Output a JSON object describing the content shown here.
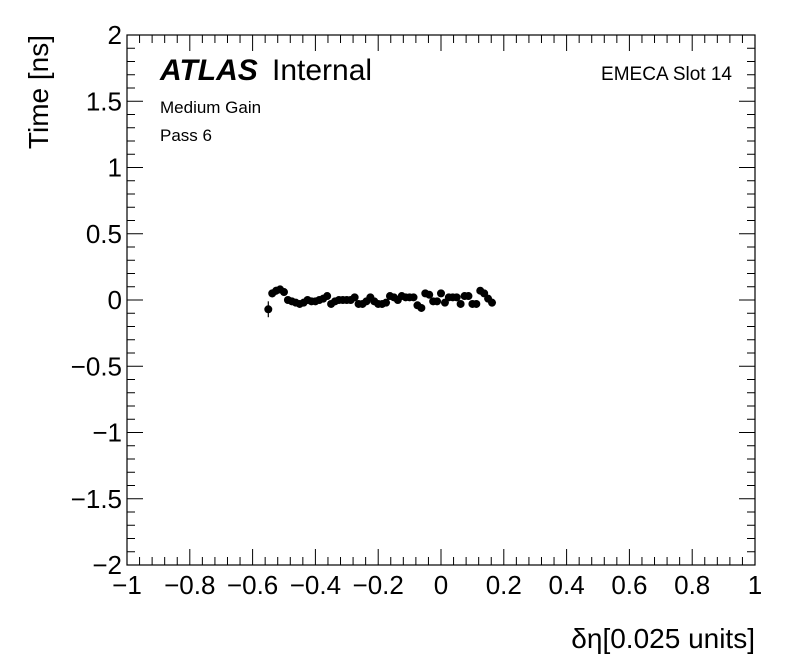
{
  "chart_data": {
    "type": "scatter",
    "xlabel": "δη[0.025 units]",
    "ylabel": "Time [ns]",
    "xlim": [
      -1,
      1
    ],
    "ylim": [
      -2,
      2
    ],
    "x_ticks": [
      "−1",
      "−0.8",
      "−0.6",
      "−0.4",
      "−0.2",
      "0",
      "0.2",
      "0.4",
      "0.6",
      "0.8",
      "1"
    ],
    "x_tick_values": [
      -1,
      -0.8,
      -0.6,
      -0.4,
      -0.2,
      0,
      0.2,
      0.4,
      0.6,
      0.8,
      1
    ],
    "y_ticks": [
      "−2",
      "−1.5",
      "−1",
      "−0.5",
      "0",
      "0.5",
      "1",
      "1.5",
      "2"
    ],
    "y_tick_values": [
      -2,
      -1.5,
      -1,
      -0.5,
      0,
      0.5,
      1,
      1.5,
      2
    ],
    "annotations": {
      "atlas": "ATLAS",
      "internal": "Internal",
      "gain": "Medium Gain",
      "pass": "Pass 6",
      "slot": "EMECA Slot 14"
    },
    "grid": false,
    "series": [
      {
        "marker": "circle",
        "color": "#000000",
        "points": [
          {
            "x": -0.55,
            "y": -0.07,
            "err": 0.06
          },
          {
            "x": -0.5375,
            "y": 0.05,
            "err": 0.03
          },
          {
            "x": -0.525,
            "y": 0.07,
            "err": 0.03
          },
          {
            "x": -0.5125,
            "y": 0.08,
            "err": 0.03
          },
          {
            "x": -0.5,
            "y": 0.06,
            "err": 0.03
          },
          {
            "x": -0.4875,
            "y": 0.0,
            "err": 0.02
          },
          {
            "x": -0.475,
            "y": -0.01,
            "err": 0.02
          },
          {
            "x": -0.4625,
            "y": -0.02,
            "err": 0.02
          },
          {
            "x": -0.45,
            "y": -0.03,
            "err": 0.02
          },
          {
            "x": -0.4375,
            "y": -0.02,
            "err": 0.02
          },
          {
            "x": -0.425,
            "y": 0.0,
            "err": 0.02
          },
          {
            "x": -0.4125,
            "y": -0.01,
            "err": 0.02
          },
          {
            "x": -0.4,
            "y": -0.01,
            "err": 0.02
          },
          {
            "x": -0.3875,
            "y": 0.0,
            "err": 0.02
          },
          {
            "x": -0.375,
            "y": 0.01,
            "err": 0.02
          },
          {
            "x": -0.3625,
            "y": 0.03,
            "err": 0.02
          },
          {
            "x": -0.35,
            "y": -0.03,
            "err": 0.02
          },
          {
            "x": -0.3375,
            "y": -0.01,
            "err": 0.02
          },
          {
            "x": -0.325,
            "y": 0.0,
            "err": 0.02
          },
          {
            "x": -0.3125,
            "y": 0.0,
            "err": 0.02
          },
          {
            "x": -0.3,
            "y": 0.0,
            "err": 0.02
          },
          {
            "x": -0.2875,
            "y": 0.0,
            "err": 0.02
          },
          {
            "x": -0.275,
            "y": 0.02,
            "err": 0.02
          },
          {
            "x": -0.2625,
            "y": -0.03,
            "err": 0.02
          },
          {
            "x": -0.25,
            "y": -0.03,
            "err": 0.02
          },
          {
            "x": -0.2375,
            "y": -0.01,
            "err": 0.02
          },
          {
            "x": -0.225,
            "y": 0.02,
            "err": 0.02
          },
          {
            "x": -0.2125,
            "y": -0.01,
            "err": 0.02
          },
          {
            "x": -0.2,
            "y": -0.03,
            "err": 0.02
          },
          {
            "x": -0.1875,
            "y": -0.03,
            "err": 0.02
          },
          {
            "x": -0.175,
            "y": -0.02,
            "err": 0.02
          },
          {
            "x": -0.1625,
            "y": 0.03,
            "err": 0.02
          },
          {
            "x": -0.15,
            "y": 0.02,
            "err": 0.02
          },
          {
            "x": -0.1375,
            "y": 0.0,
            "err": 0.02
          },
          {
            "x": -0.125,
            "y": 0.03,
            "err": 0.02
          },
          {
            "x": -0.1125,
            "y": 0.02,
            "err": 0.02
          },
          {
            "x": -0.1,
            "y": 0.02,
            "err": 0.02
          },
          {
            "x": -0.0875,
            "y": 0.02,
            "err": 0.02
          },
          {
            "x": -0.075,
            "y": -0.04,
            "err": 0.02
          },
          {
            "x": -0.0625,
            "y": -0.06,
            "err": 0.02
          },
          {
            "x": -0.05,
            "y": 0.05,
            "err": 0.02
          },
          {
            "x": -0.0375,
            "y": 0.04,
            "err": 0.02
          },
          {
            "x": -0.025,
            "y": -0.01,
            "err": 0.02
          },
          {
            "x": -0.0125,
            "y": -0.01,
            "err": 0.02
          },
          {
            "x": 0.0,
            "y": 0.05,
            "err": 0.02
          },
          {
            "x": 0.0125,
            "y": -0.02,
            "err": 0.02
          },
          {
            "x": 0.025,
            "y": 0.02,
            "err": 0.02
          },
          {
            "x": 0.0375,
            "y": 0.02,
            "err": 0.02
          },
          {
            "x": 0.05,
            "y": 0.02,
            "err": 0.02
          },
          {
            "x": 0.0625,
            "y": -0.03,
            "err": 0.02
          },
          {
            "x": 0.075,
            "y": 0.03,
            "err": 0.02
          },
          {
            "x": 0.0875,
            "y": 0.03,
            "err": 0.02
          },
          {
            "x": 0.1,
            "y": -0.03,
            "err": 0.02
          },
          {
            "x": 0.1125,
            "y": -0.03,
            "err": 0.02
          },
          {
            "x": 0.125,
            "y": 0.07,
            "err": 0.02
          },
          {
            "x": 0.1375,
            "y": 0.05,
            "err": 0.02
          },
          {
            "x": 0.15,
            "y": 0.01,
            "err": 0.02
          },
          {
            "x": 0.1625,
            "y": -0.02,
            "err": 0.03
          }
        ]
      }
    ]
  }
}
